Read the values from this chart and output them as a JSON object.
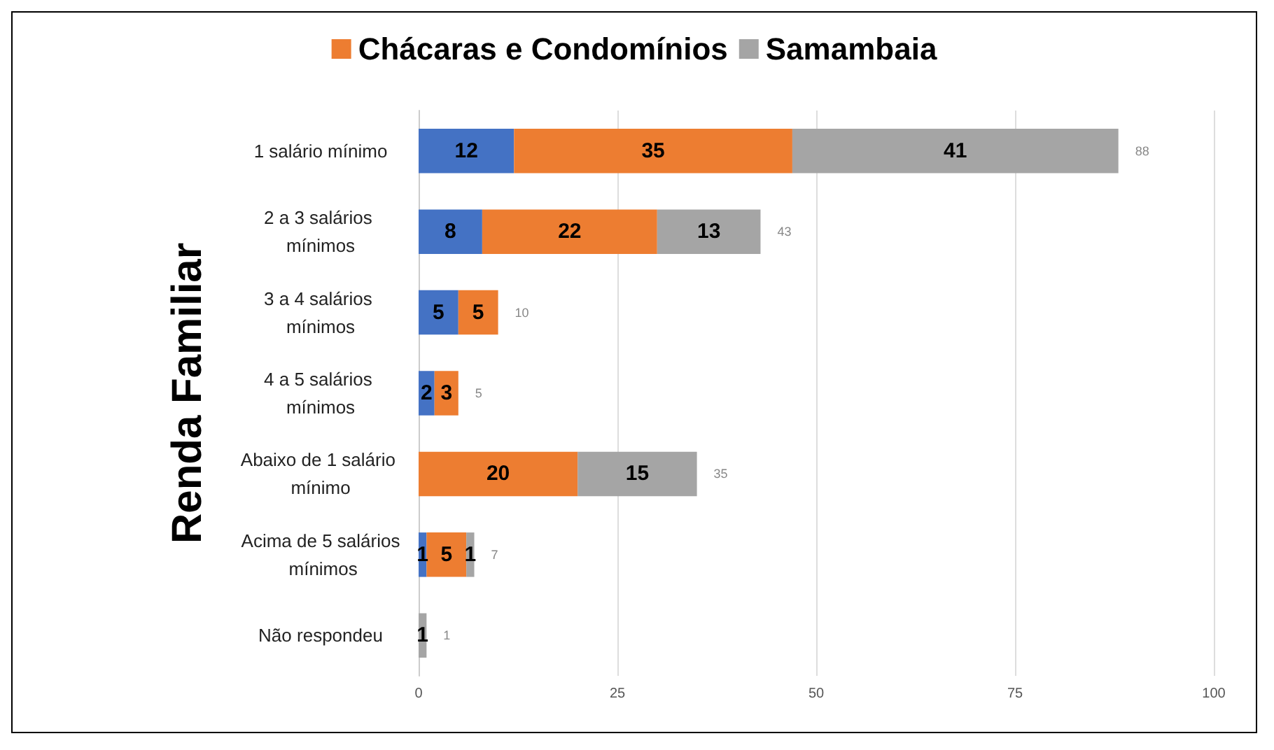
{
  "chart_data": {
    "type": "bar",
    "orientation": "horizontal",
    "stacked": true,
    "ylabel": "Renda Familiar",
    "categories": [
      "1 salário mínimo",
      "2 a 3 salários mínimos",
      "3 a 4 salários mínimos",
      "4 a 5 salários mínimos",
      "Abaixo de 1 salário mínimo",
      "Acima de 5 salários mínimos",
      "Não respondeu"
    ],
    "series": [
      {
        "color": "#4472c4",
        "values": [
          12,
          8,
          5,
          2,
          null,
          1,
          null
        ],
        "value_labels": [
          "12",
          "8",
          "5",
          "2",
          null,
          "1",
          null
        ]
      },
      {
        "name": "Chácaras e Condomínios",
        "color": "#ed7d31",
        "values": [
          35,
          22,
          5,
          3,
          20,
          5,
          null
        ],
        "value_labels": [
          "35",
          "22",
          "5",
          "3",
          "20",
          "5",
          null
        ]
      },
      {
        "name": "Samambaia",
        "color": "#a5a5a5",
        "values": [
          41,
          13,
          null,
          null,
          15,
          1,
          1
        ],
        "value_labels": [
          "41",
          "13",
          null,
          null,
          "15",
          "1",
          "1"
        ]
      }
    ],
    "totals": [
      "88",
      "43",
      "10",
      "5",
      "35",
      "7",
      "1"
    ],
    "xlim": [
      0,
      100
    ],
    "xticks": [
      0,
      25,
      50,
      75,
      100
    ],
    "grid": "x",
    "legend": "top"
  }
}
